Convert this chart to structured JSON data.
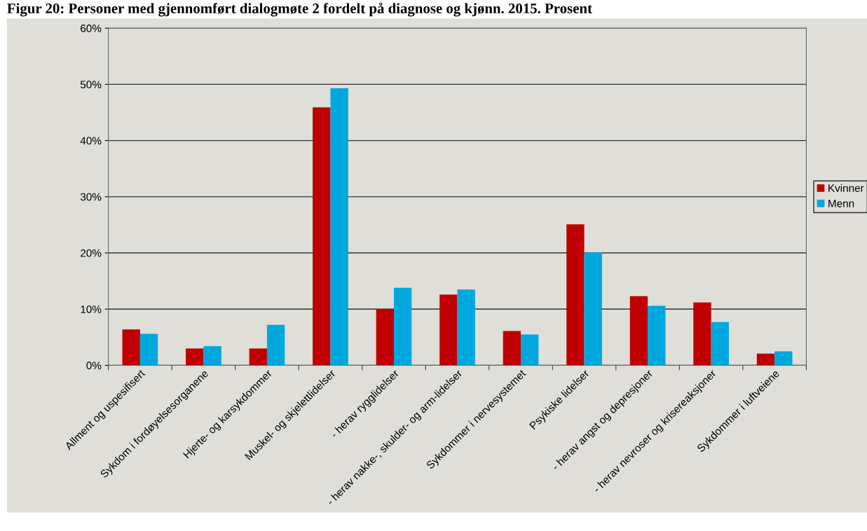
{
  "chart_data": {
    "type": "bar",
    "title": "Figur 20: Personer med gjennomført dialogmøte 2 fordelt på diagnose og kjønn. 2015. Prosent",
    "categories": [
      "Allment og uspesifisert",
      "Sykdom i fordøyelsesorganene",
      "Hjerte- og karsykdommer",
      "Muskel- og skjelettlidelser",
      "- herav rygglidelser",
      "- herav nakke-, skulder- og arm-lidelser",
      "Sykdommer i nervesystemet",
      "Psykiske lidelser",
      "- herav angst og depresjoner",
      "- herav nevroser og krisereaksjoner",
      "Sykdommer i luftveiene"
    ],
    "series": [
      {
        "name": "Kvinner",
        "color": "#c00000",
        "values": [
          6.4,
          3.0,
          3.0,
          45.9,
          10.0,
          12.6,
          6.1,
          25.1,
          12.3,
          11.2,
          2.1
        ]
      },
      {
        "name": "Menn",
        "color": "#00a8de",
        "values": [
          5.6,
          3.4,
          7.2,
          49.3,
          13.8,
          13.5,
          5.5,
          20.1,
          10.6,
          7.7,
          2.5
        ]
      }
    ],
    "ylim": [
      0,
      60
    ],
    "yticks": [
      {
        "value": 0,
        "label": "0%"
      },
      {
        "value": 10,
        "label": "10%"
      },
      {
        "value": 20,
        "label": "20%"
      },
      {
        "value": 30,
        "label": "30%"
      },
      {
        "value": 40,
        "label": "40%"
      },
      {
        "value": 50,
        "label": "50%"
      },
      {
        "value": 60,
        "label": "60%"
      }
    ],
    "grid": "y",
    "legend": "right"
  }
}
